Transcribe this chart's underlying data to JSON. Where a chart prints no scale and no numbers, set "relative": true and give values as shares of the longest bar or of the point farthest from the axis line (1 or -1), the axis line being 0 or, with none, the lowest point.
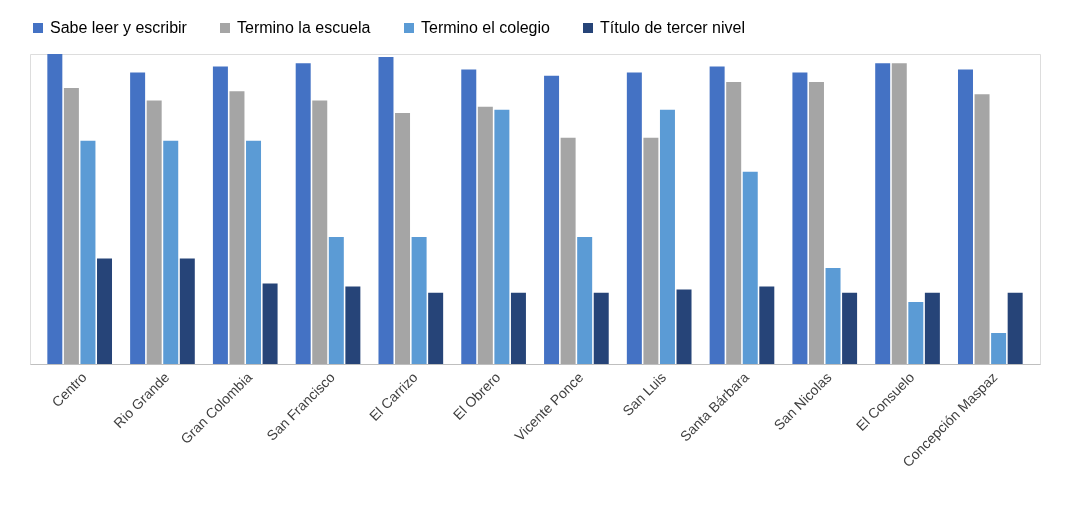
{
  "chart_data": {
    "type": "bar",
    "relative": true,
    "legend": "top",
    "grid": false,
    "categories": [
      "Centro",
      "Rio Grande",
      "Gran Colombia",
      "San Francisco",
      "El Carrizo",
      "El Obrero",
      "Vicente Ponce",
      "San Luis",
      "Santa Bárbara",
      "San Nicolas",
      "El Consuelo",
      "Concepción Maspaz"
    ],
    "series": [
      {
        "name": "Sabe leer y escribir",
        "color": "#4472c4",
        "values": [
          1.0,
          0.94,
          0.96,
          0.97,
          0.99,
          0.95,
          0.93,
          0.94,
          0.96,
          0.94,
          0.97,
          0.95
        ]
      },
      {
        "name": "Termino la escuela",
        "color": "#a5a5a5",
        "values": [
          0.89,
          0.85,
          0.88,
          0.85,
          0.81,
          0.83,
          0.73,
          0.73,
          0.91,
          0.91,
          0.97,
          0.87
        ]
      },
      {
        "name": "Termino el colegio",
        "color": "#5b9bd5",
        "values": [
          0.72,
          0.72,
          0.72,
          0.41,
          0.41,
          0.82,
          0.41,
          0.82,
          0.62,
          0.31,
          0.2,
          0.1
        ]
      },
      {
        "name": "Título de tercer nivel",
        "color": "#264478",
        "values": [
          0.34,
          0.34,
          0.26,
          0.25,
          0.23,
          0.23,
          0.23,
          0.24,
          0.25,
          0.23,
          0.23,
          0.23
        ]
      }
    ]
  }
}
